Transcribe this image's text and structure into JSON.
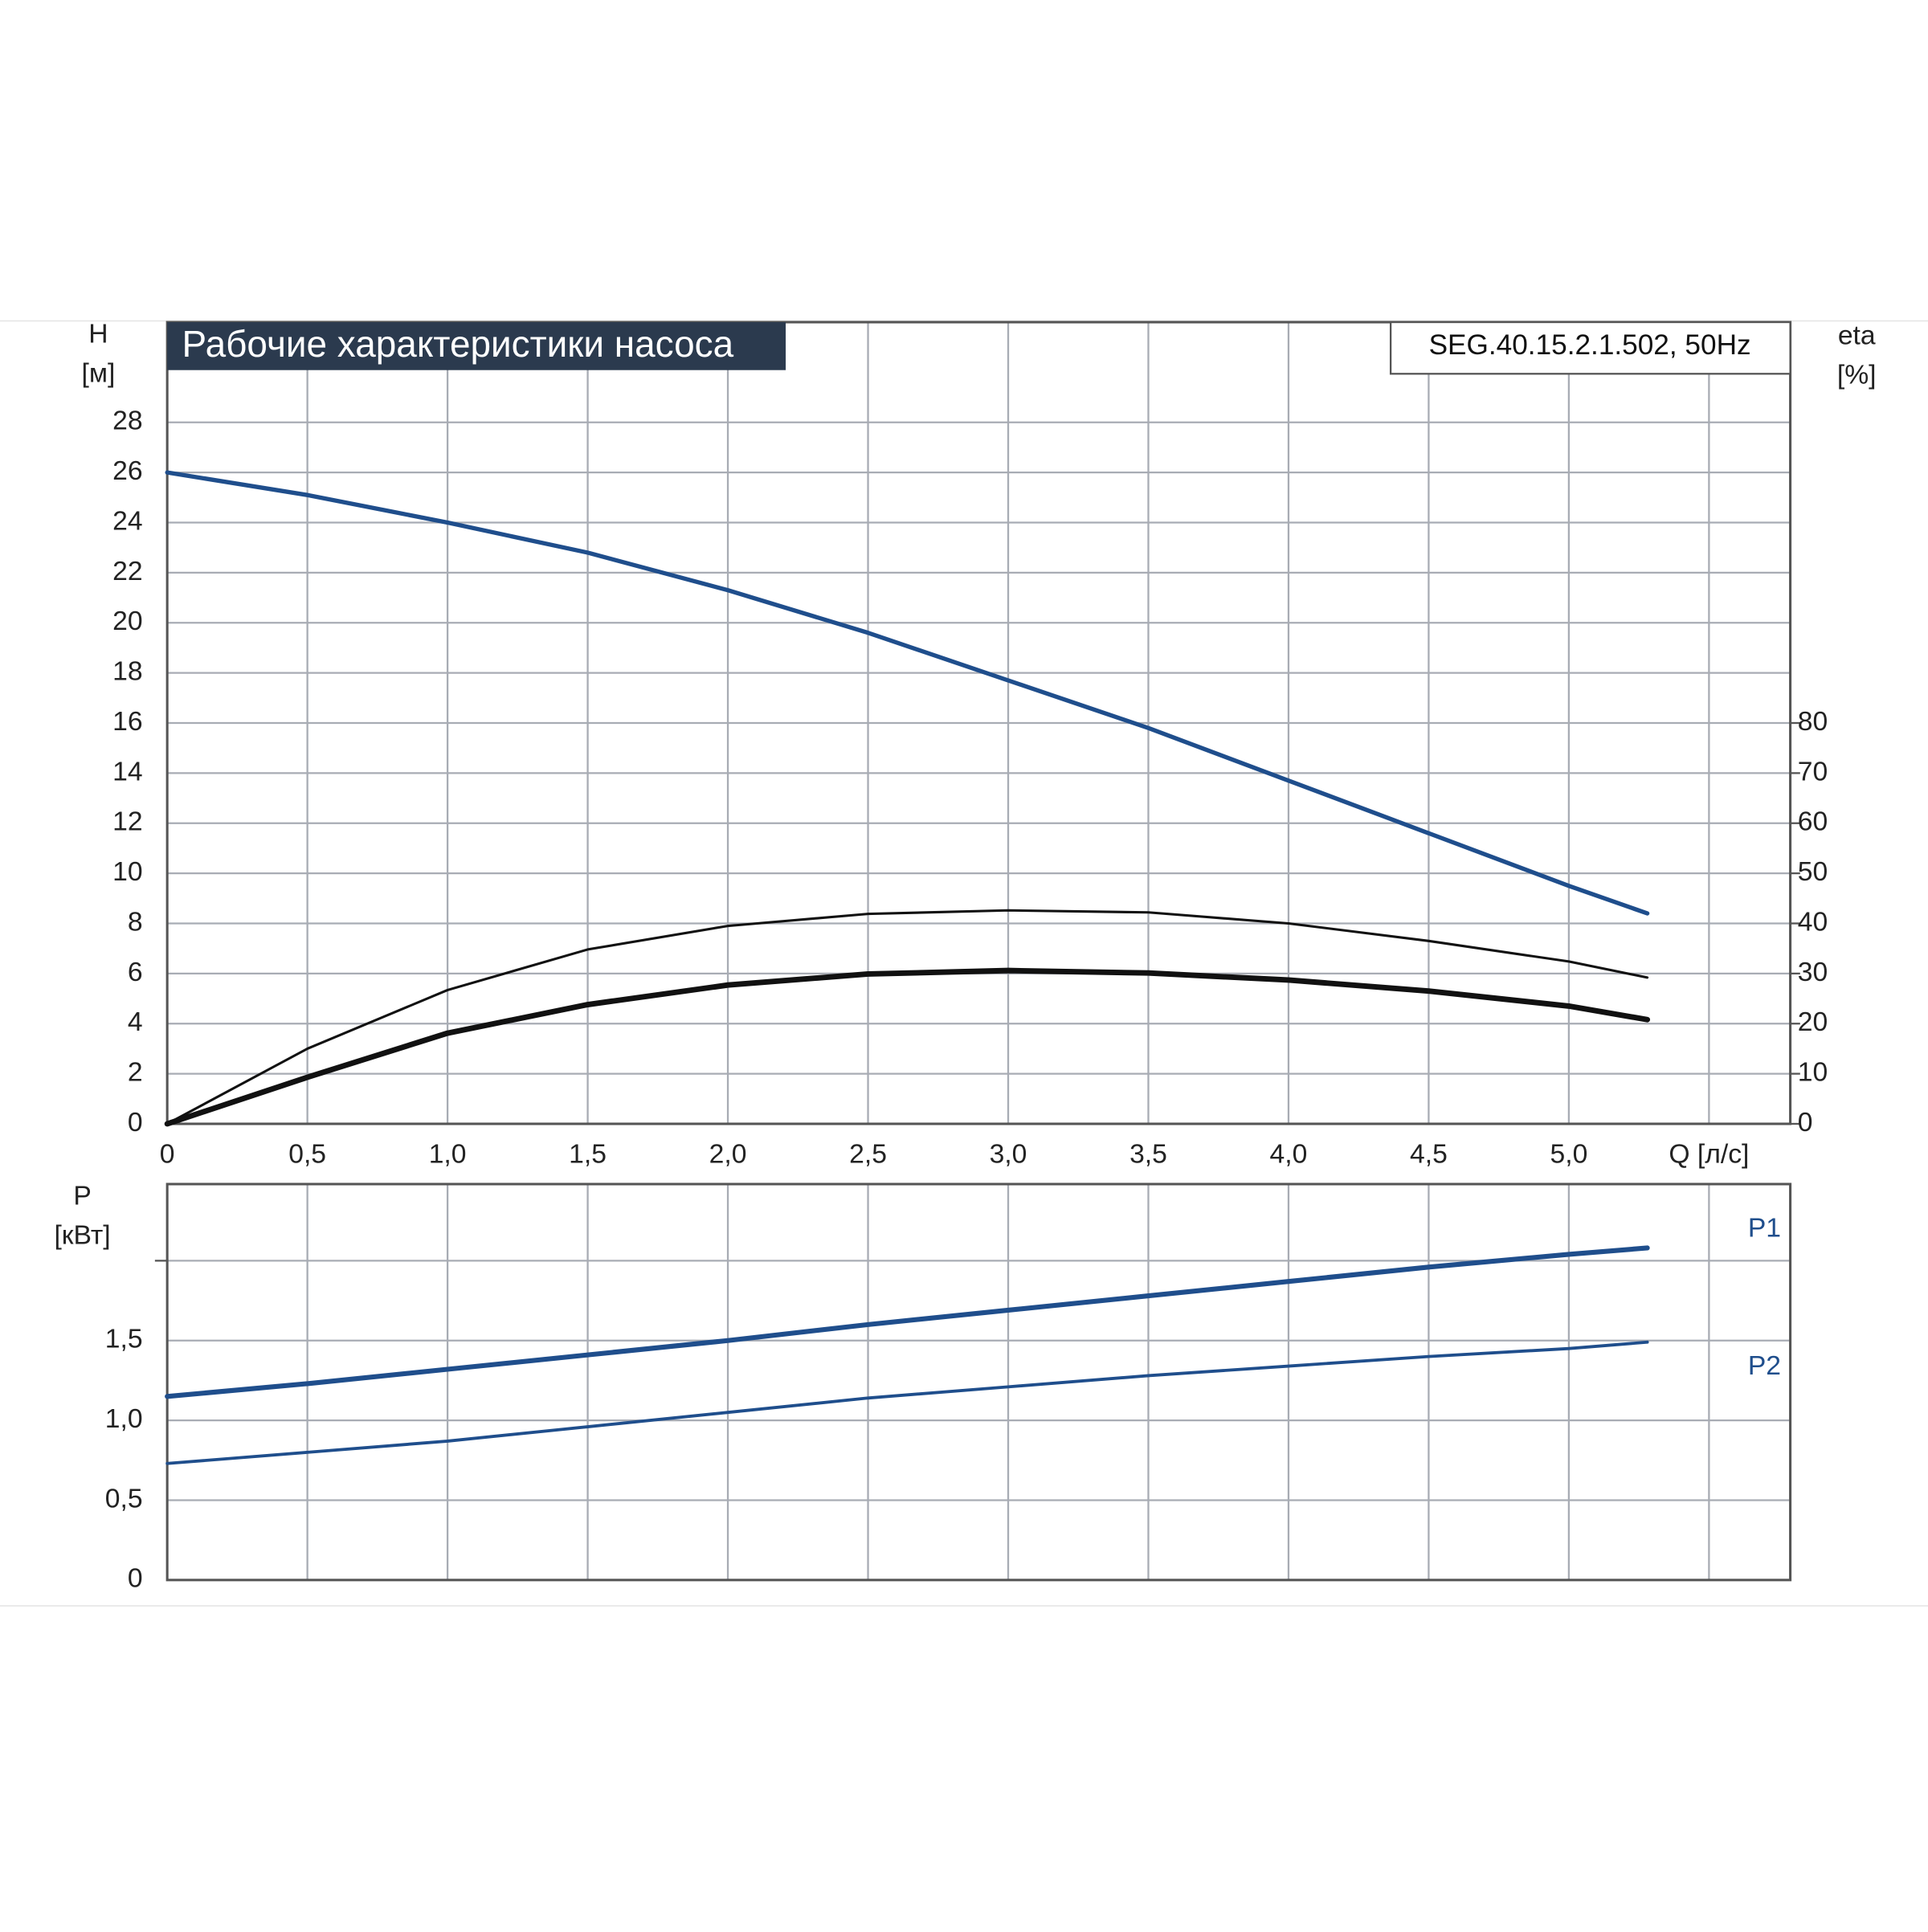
{
  "chart_data": [
    {
      "type": "line",
      "title": "Рабочие характеристики насоса",
      "model": "SEG.40.15.2.1.502, 50Hz",
      "ylabel": [
        "H",
        "[м]"
      ],
      "y2label": [
        "eta",
        "[%]"
      ],
      "x": [
        0,
        0.5,
        1.0,
        1.5,
        2.0,
        2.5,
        3.0,
        3.5,
        4.0,
        4.5,
        5.0,
        5.28
      ],
      "xlim": [
        0,
        5.79
      ],
      "xticks": [
        0,
        {
          "value": 0.5,
          "label": "0,5"
        },
        {
          "value": 1,
          "label": "1,0"
        },
        {
          "value": 1.5,
          "label": "1,5"
        },
        {
          "value": 2,
          "label": "2,0"
        },
        {
          "value": 2.5,
          "label": "2,5"
        },
        {
          "value": 3,
          "label": "3,0"
        },
        {
          "value": 3.5,
          "label": "3,5"
        },
        {
          "value": 4,
          "label": "4,0"
        },
        {
          "value": 4.5,
          "label": "4,5"
        },
        {
          "value": 5,
          "label": "5,0"
        },
        {
          "value": 5.5,
          "label": "Q [л/с]"
        }
      ],
      "ylim": [
        0,
        32
      ],
      "yticks": [
        0,
        2,
        4,
        6,
        8,
        10,
        12,
        14,
        16,
        18,
        20,
        22,
        24,
        26,
        28
      ],
      "y2lim": [
        0,
        160
      ],
      "y2ticks": [
        0,
        10,
        20,
        30,
        40,
        50,
        60,
        70,
        80
      ],
      "grid": true,
      "series": [
        {
          "color": "#1f4e8c",
          "width": 3.5,
          "values": [
            26,
            25.1,
            24.0,
            22.8,
            21.3,
            19.6,
            17.7,
            15.8,
            13.7,
            11.6,
            9.5,
            8.4
          ]
        },
        {
          "color": "#111111",
          "width": 2,
          "axis": "y2",
          "values": [
            0,
            15,
            26.7,
            34.8,
            39.5,
            41.9,
            42.6,
            42.2,
            40,
            36.5,
            32.4,
            29.2
          ]
        },
        {
          "color": "#111111",
          "width": 4.5,
          "axis": "y2",
          "values": [
            0,
            9.3,
            18.1,
            23.8,
            27.7,
            29.9,
            30.6,
            30.1,
            28.7,
            26.5,
            23.5,
            20.8
          ]
        }
      ]
    },
    {
      "type": "line",
      "ylabel": [
        "P",
        "[кВт]"
      ],
      "x": [
        0,
        0.5,
        1.0,
        1.5,
        2.0,
        2.5,
        3.0,
        3.5,
        4.0,
        4.5,
        5.0,
        5.28
      ],
      "xlim": [
        0,
        5.79
      ],
      "ylim": [
        0,
        2.48
      ],
      "yticks": [
        0,
        {
          "value": 0.5,
          "label": "0,5"
        },
        {
          "value": 1,
          "label": "1,0"
        },
        {
          "value": 1.5,
          "label": "1,5"
        },
        {
          "value": 2,
          "label": null
        }
      ],
      "grid": true,
      "series": [
        {
          "name": "P1",
          "color": "#1f4e8c",
          "width": 4,
          "values": [
            1.15,
            1.23,
            1.32,
            1.41,
            1.5,
            1.6,
            1.69,
            1.78,
            1.87,
            1.96,
            2.04,
            2.08
          ]
        },
        {
          "name": "P2",
          "color": "#1f4e8c",
          "width": 2.5,
          "values": [
            0.73,
            0.8,
            0.87,
            0.96,
            1.05,
            1.14,
            1.21,
            1.28,
            1.34,
            1.4,
            1.45,
            1.49
          ]
        }
      ]
    }
  ]
}
